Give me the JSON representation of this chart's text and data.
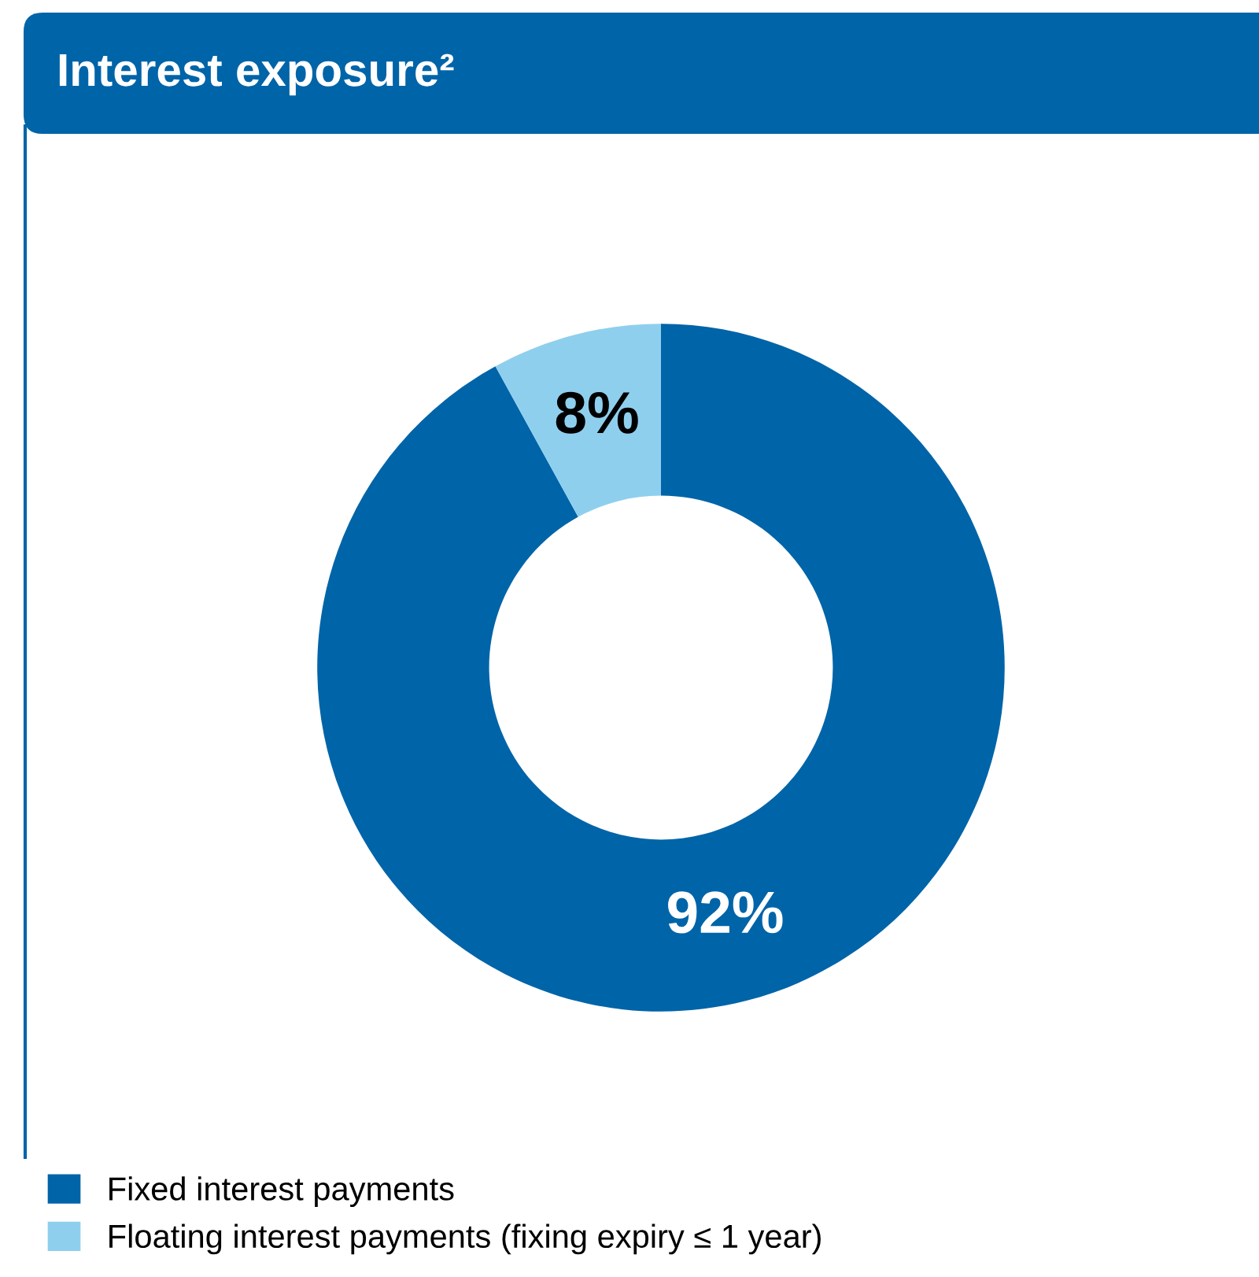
{
  "chart_data": {
    "type": "donut",
    "title": "Interest exposure²",
    "categories": [
      "Fixed interest payments",
      "Floating interest payments (fixing expiry ≤ 1 year)"
    ],
    "values": [
      92,
      8
    ],
    "colors": [
      "#0064a8",
      "#8fcfee"
    ],
    "value_labels": [
      "92%",
      "8%"
    ],
    "legend": "bottom left"
  }
}
